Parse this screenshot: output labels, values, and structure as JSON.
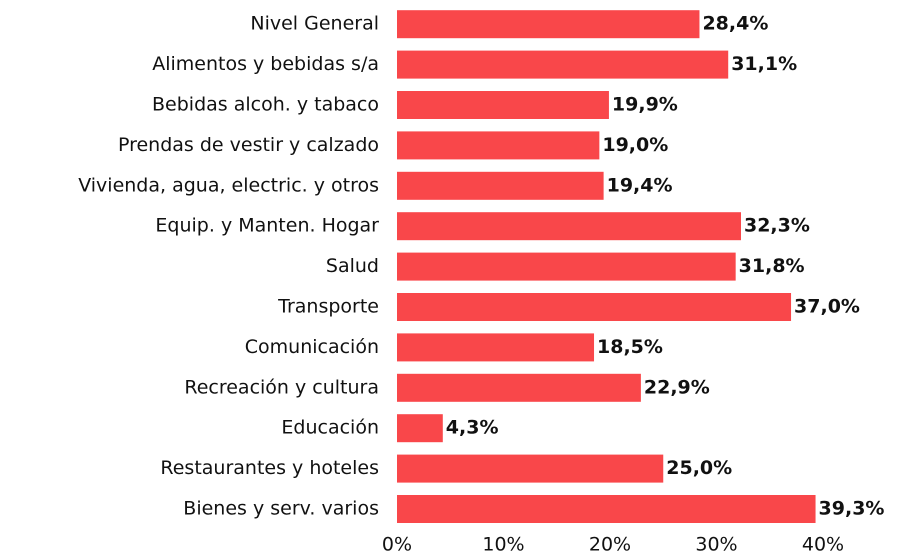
{
  "chart_data": {
    "type": "bar",
    "orientation": "horizontal",
    "categories": [
      "Nivel General",
      "Alimentos y bebidas s/a",
      "Bebidas alcoh. y tabaco",
      "Prendas de vestir y calzado",
      "Vivienda, agua, electric. y otros",
      "Equip. y Manten. Hogar",
      "Salud",
      "Transporte",
      "Comunicación",
      "Recreación y cultura",
      "Educación",
      "Restaurantes y hoteles",
      "Bienes y serv. varios"
    ],
    "values": [
      28.4,
      31.1,
      19.9,
      19.0,
      19.4,
      32.3,
      31.8,
      37.0,
      18.5,
      22.9,
      4.3,
      25.0,
      39.3
    ],
    "value_labels": [
      "28,4%",
      "31,1%",
      "19,9%",
      "19,0%",
      "19,4%",
      "32,3%",
      "31,8%",
      "37,0%",
      "18,5%",
      "22,9%",
      "4,3%",
      "25,0%",
      "39,3%"
    ],
    "color": "#f9474a",
    "xlim": [
      0,
      40
    ],
    "xticks": [
      {
        "value": 0,
        "label": "0%"
      },
      {
        "value": 10,
        "label": "10%"
      },
      {
        "value": 20,
        "label": "20%"
      },
      {
        "value": 30,
        "label": "30%"
      },
      {
        "value": 40,
        "label": "40%"
      }
    ],
    "grid": false
  }
}
